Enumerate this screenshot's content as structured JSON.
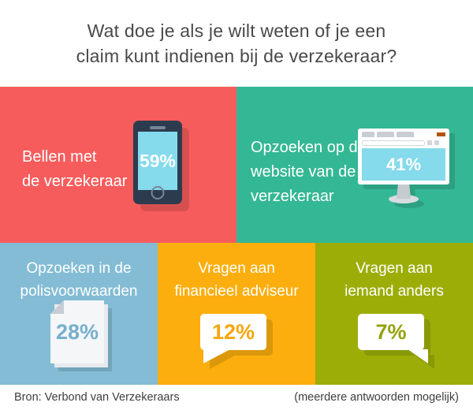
{
  "header": {
    "title_line1": "Wat doe je als je wilt weten of je een",
    "title_line2": "claim kunt indienen bij de verzekeraar?"
  },
  "panels": [
    {
      "label_lines": [
        "Bellen met",
        "de verzekeraar"
      ],
      "value": "59%",
      "icon": "smartphone-icon",
      "bg": "#f75c5c"
    },
    {
      "label_lines": [
        "Opzoeken op de",
        "website van de",
        "verzekeraar"
      ],
      "value": "41%",
      "icon": "desktop-monitor-icon",
      "bg": "#34b794"
    },
    {
      "label_lines": [
        "Opzoeken in de",
        "polisvoorwaarden"
      ],
      "value": "28%",
      "icon": "document-stack-icon",
      "bg": "#83bcd4"
    },
    {
      "label_lines": [
        "Vragen aan",
        "financieel adviseur"
      ],
      "value": "12%",
      "icon": "speech-bubble-left-icon",
      "bg": "#fbae0d"
    },
    {
      "label_lines": [
        "Vragen aan",
        "iemand anders"
      ],
      "value": "7%",
      "icon": "speech-bubble-right-icon",
      "bg": "#9cad08"
    }
  ],
  "footer": {
    "source": "Bron: Verbond van Verzekeraars",
    "note": "(meerdere antwoorden mogelijk)"
  },
  "colors": {
    "panel_red": "#f75c5c",
    "panel_teal": "#34b794",
    "panel_blue": "#83bcd4",
    "panel_yellow": "#fbae0d",
    "panel_olive": "#9cad08",
    "device_screen_blue": "#85daec",
    "phone_body_navy": "#2c3c4e",
    "browser_button_orange": "#b2540e",
    "title_text": "#48494b"
  },
  "chart_data": {
    "type": "bar",
    "title": "Wat doe je als je wilt weten of je een claim kunt indienen bij de verzekeraar?",
    "categories": [
      "Bellen met de verzekeraar",
      "Opzoeken op de website van de verzekeraar",
      "Opzoeken in de polisvoorwaarden",
      "Vragen aan financieel adviseur",
      "Vragen aan iemand anders"
    ],
    "values": [
      59,
      41,
      28,
      12,
      7
    ],
    "unit": "%",
    "source": "Bron: Verbond van Verzekeraars",
    "note": "(meerdere antwoorden mogelijk)",
    "legend": false
  }
}
